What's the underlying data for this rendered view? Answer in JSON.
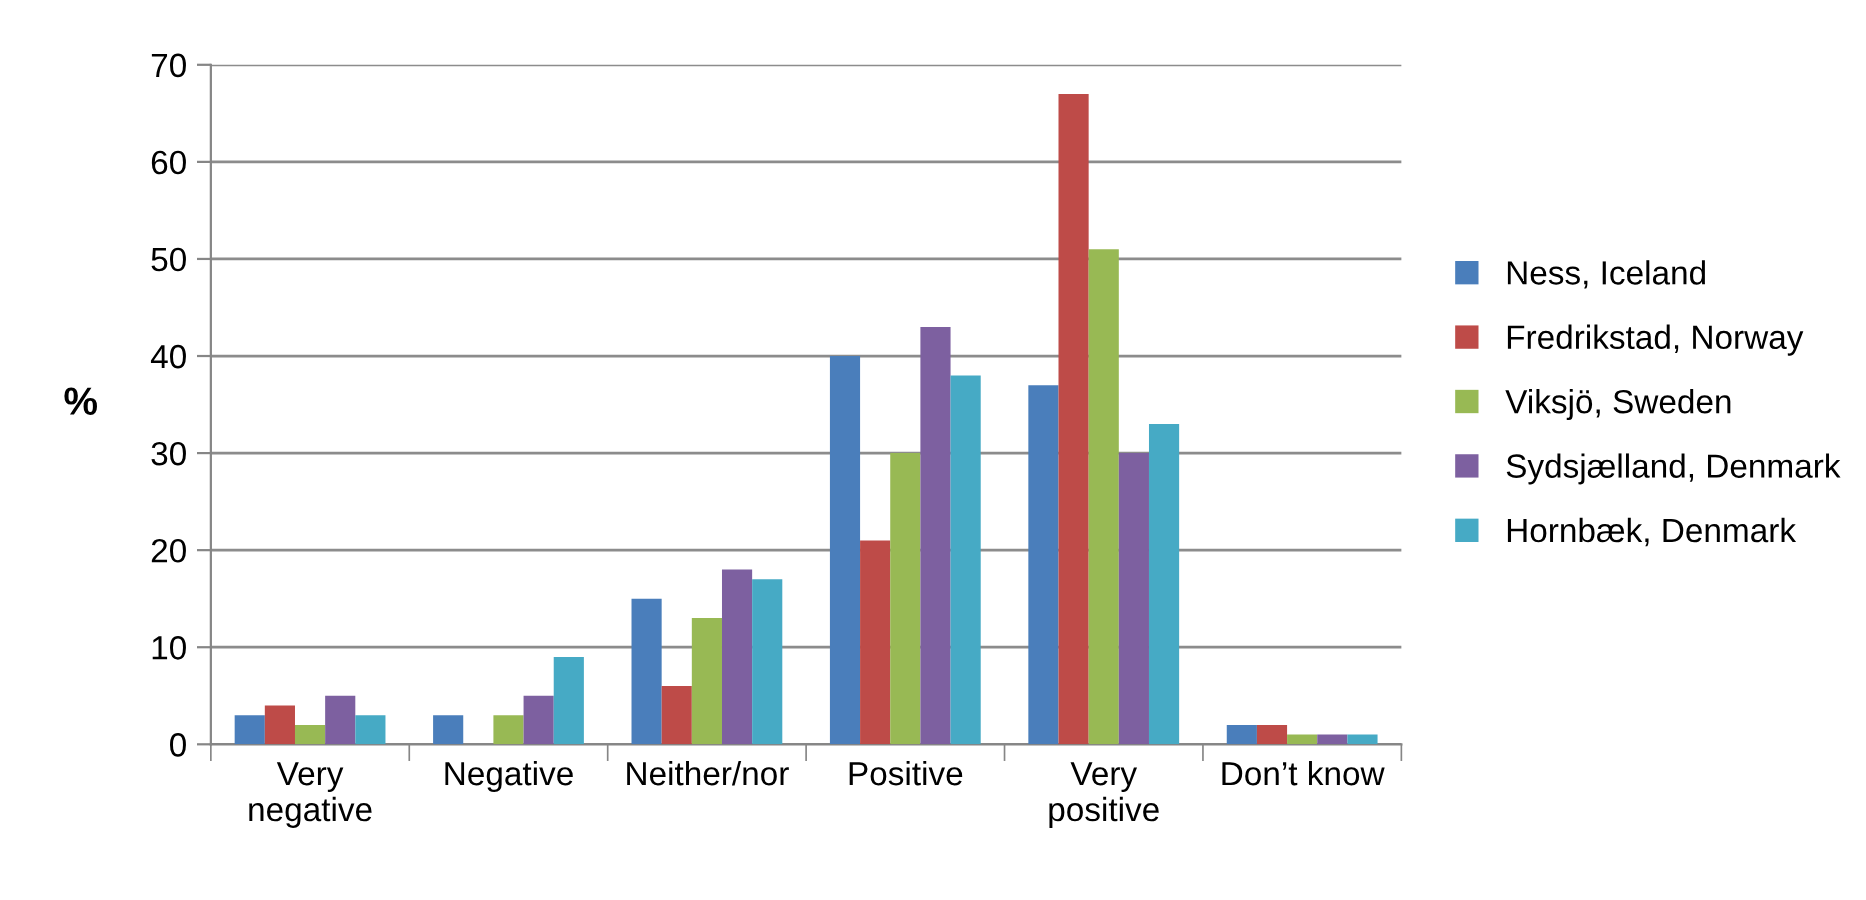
{
  "chart_data": {
    "type": "bar",
    "ylabel": "%",
    "categories": [
      "Very\nnegative",
      "Negative",
      "Neither/nor",
      "Positive",
      "Very\npositive",
      "Don’t know"
    ],
    "series": [
      {
        "name": "Ness, Iceland",
        "color": "#4a7ebb",
        "values": [
          3,
          3,
          15,
          40,
          37,
          2
        ]
      },
      {
        "name": "Fredrikstad, Norway",
        "color": "#be4b48",
        "values": [
          4,
          0,
          6,
          21,
          67,
          2
        ]
      },
      {
        "name": "Viksjö, Sweden",
        "color": "#98b954",
        "values": [
          2,
          3,
          13,
          30,
          51,
          1
        ]
      },
      {
        "name": "Sydsjælland, Denmark",
        "color": "#7d60a0",
        "values": [
          5,
          5,
          18,
          43,
          30,
          1
        ]
      },
      {
        "name": "Hornbæk, Denmark",
        "color": "#46aac5",
        "values": [
          3,
          9,
          17,
          38,
          33,
          1
        ]
      }
    ],
    "ylim": [
      0,
      70
    ],
    "yticks": [
      0,
      10,
      20,
      30,
      40,
      50,
      60,
      70
    ],
    "grid": "y",
    "legend": "right"
  }
}
